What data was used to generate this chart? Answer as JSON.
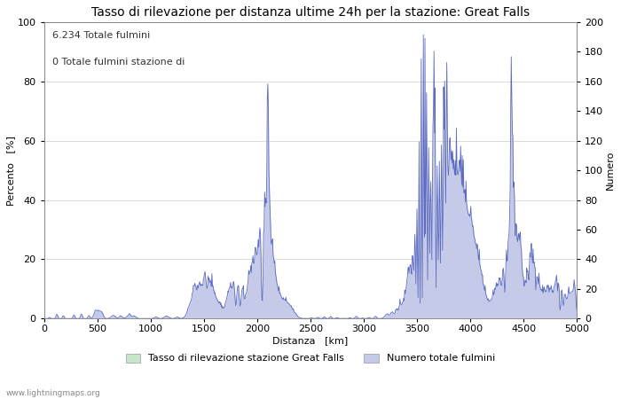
{
  "title": "Tasso di rilevazione per distanza ultime 24h per la stazione: Great Falls",
  "xlabel": "Distanza   [km]",
  "ylabel_left": "Percento   [%]",
  "ylabel_right": "Numero",
  "annotation_line1": "6.234 Totale fulmini",
  "annotation_line2": "0 Totale fulmini stazione di",
  "xlim": [
    0,
    5000
  ],
  "ylim_left": [
    0,
    100
  ],
  "ylim_right": [
    0,
    200
  ],
  "xticks": [
    0,
    500,
    1000,
    1500,
    2000,
    2500,
    3000,
    3500,
    4000,
    4500,
    5000
  ],
  "yticks_left": [
    0,
    20,
    40,
    60,
    80,
    100
  ],
  "yticks_right": [
    0,
    20,
    40,
    60,
    80,
    100,
    120,
    140,
    160,
    180,
    200
  ],
  "legend_label_green": "Tasso di rilevazione stazione Great Falls",
  "legend_label_blue": "Numero totale fulmini",
  "fill_green_color": "#c8e6c9",
  "fill_blue_color": "#c5cae9",
  "line_color": "#5c6bc0",
  "watermark": "www.lightningmaps.org",
  "title_fontsize": 10,
  "axis_label_fontsize": 8,
  "tick_fontsize": 8,
  "annotation_fontsize": 8,
  "background_color": "#ffffff",
  "grid_color": "#cccccc"
}
